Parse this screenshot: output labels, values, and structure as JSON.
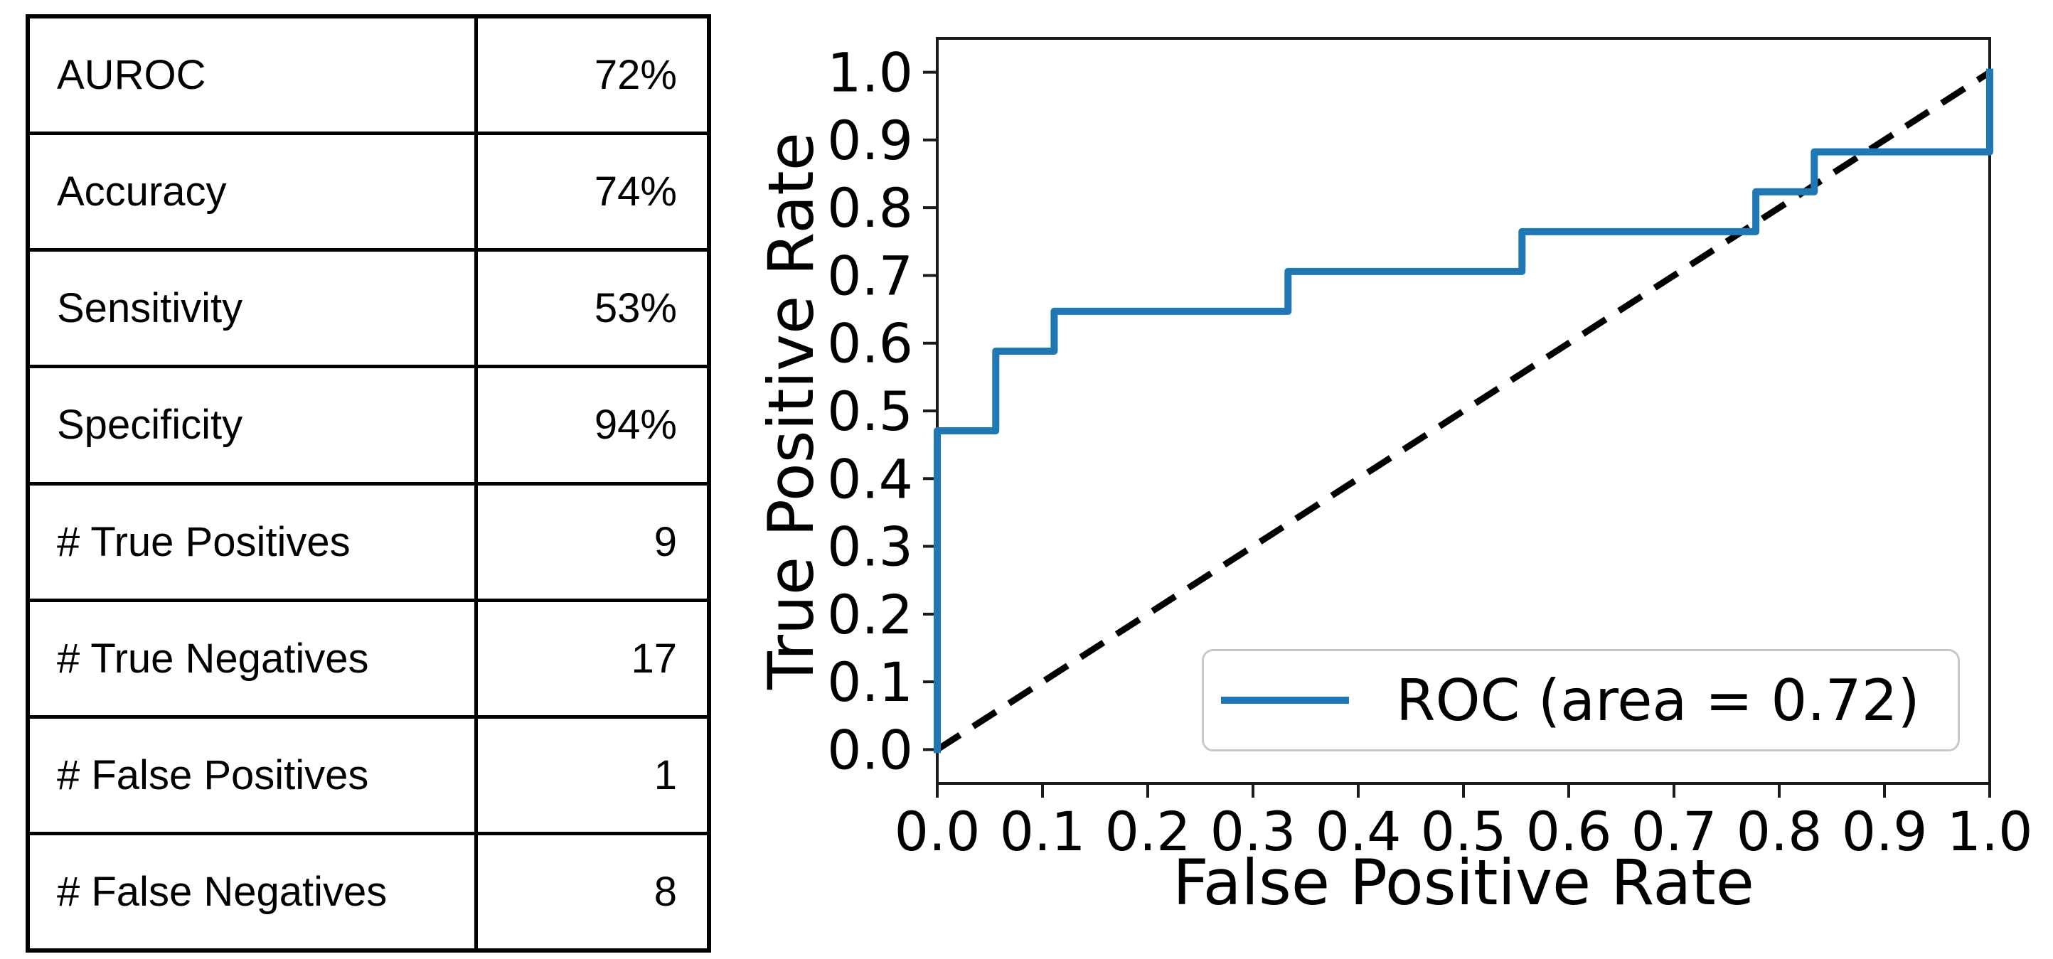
{
  "table": {
    "rows": [
      {
        "label": "AUROC",
        "value": "72%"
      },
      {
        "label": "Accuracy",
        "value": "74%"
      },
      {
        "label": "Sensitivity",
        "value": "53%"
      },
      {
        "label": "Specificity",
        "value": "94%"
      },
      {
        "label": "# True Positives",
        "value": "9"
      },
      {
        "label": "# True Negatives",
        "value": "17"
      },
      {
        "label": "# False Positives",
        "value": "1"
      },
      {
        "label": "# False Negatives",
        "value": "8"
      }
    ]
  },
  "chart_data": {
    "type": "line",
    "title": "",
    "xlabel": "False Positive Rate",
    "ylabel": "True Positive Rate",
    "xlim": [
      0.0,
      1.0
    ],
    "ylim": [
      -0.05,
      1.05
    ],
    "x_ticks": [
      0.0,
      0.1,
      0.2,
      0.3,
      0.4,
      0.5,
      0.6,
      0.7,
      0.8,
      0.9,
      1.0
    ],
    "y_ticks": [
      0.0,
      0.1,
      0.2,
      0.3,
      0.4,
      0.5,
      0.6,
      0.7,
      0.8,
      0.9,
      1.0
    ],
    "grid": false,
    "auc": 0.72,
    "legend": {
      "position": "lower right",
      "label": "ROC (area = 0.72)"
    },
    "series": [
      {
        "name": "ROC curve",
        "color": "#1f77b4",
        "style": "solid",
        "points": [
          [
            0.0,
            0.0
          ],
          [
            0.0,
            0.4706
          ],
          [
            0.0556,
            0.4706
          ],
          [
            0.0556,
            0.5882
          ],
          [
            0.1111,
            0.5882
          ],
          [
            0.1111,
            0.6471
          ],
          [
            0.3333,
            0.6471
          ],
          [
            0.3333,
            0.7059
          ],
          [
            0.5556,
            0.7059
          ],
          [
            0.5556,
            0.7647
          ],
          [
            0.7778,
            0.7647
          ],
          [
            0.7778,
            0.8235
          ],
          [
            0.8333,
            0.8235
          ],
          [
            0.8333,
            0.8824
          ],
          [
            1.0,
            0.8824
          ],
          [
            1.0,
            1.0
          ]
        ]
      },
      {
        "name": "chance diagonal",
        "color": "#000000",
        "style": "dashed",
        "points": [
          [
            0.0,
            0.0
          ],
          [
            1.0,
            1.0
          ]
        ]
      }
    ],
    "axis_color": "#1a1a1a"
  }
}
